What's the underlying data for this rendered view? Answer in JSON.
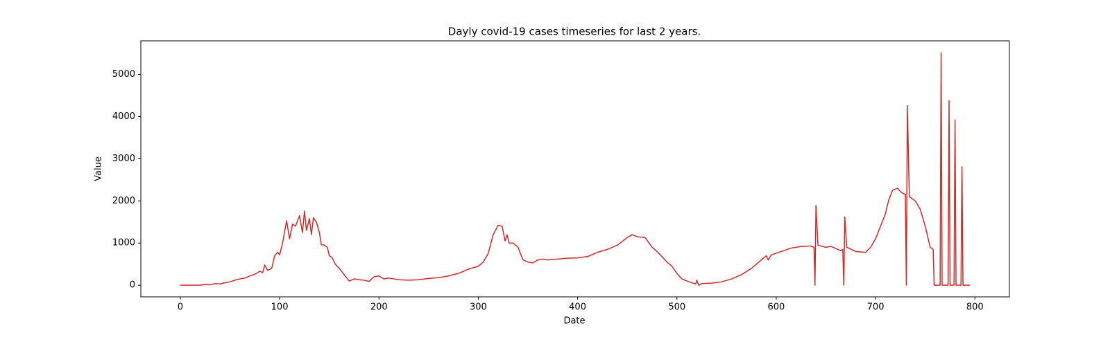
{
  "chart_data": {
    "type": "line",
    "title": "Dayly covid-19 cases timeseries for last 2 years.",
    "x_label": "Date",
    "y_label": "Value",
    "xlim": [
      -39.75,
      834.75
    ],
    "ylim": [
      -276,
      5796
    ],
    "xticks": [
      0,
      100,
      200,
      300,
      400,
      500,
      600,
      700,
      800
    ],
    "yticks": [
      0,
      1000,
      2000,
      3000,
      4000,
      5000
    ],
    "x": [
      0,
      20,
      25,
      30,
      35,
      40,
      45,
      50,
      55,
      60,
      65,
      70,
      75,
      80,
      83,
      85,
      88,
      92,
      95,
      98,
      100,
      103,
      107,
      110,
      113,
      116,
      120,
      123,
      125,
      127,
      130,
      132,
      134,
      137,
      140,
      142,
      145,
      148,
      150,
      153,
      156,
      160,
      165,
      170,
      175,
      180,
      185,
      190,
      195,
      200,
      205,
      210,
      220,
      230,
      240,
      250,
      260,
      270,
      280,
      290,
      300,
      305,
      310,
      315,
      320,
      324,
      327,
      329,
      331,
      335,
      340,
      345,
      350,
      355,
      360,
      365,
      370,
      380,
      390,
      400,
      410,
      420,
      430,
      440,
      450,
      455,
      460,
      468,
      475,
      480,
      490,
      495,
      500,
      505,
      510,
      515,
      519,
      520,
      522,
      525,
      535,
      545,
      555,
      565,
      575,
      585,
      590,
      592,
      595,
      605,
      615,
      625,
      635,
      638,
      639,
      640,
      642,
      650,
      655,
      665,
      667,
      668,
      669,
      671,
      680,
      690,
      695,
      700,
      705,
      710,
      713,
      717,
      722,
      726,
      730,
      731,
      732,
      734,
      740,
      745,
      750,
      755,
      758,
      759,
      765,
      766,
      767,
      773,
      774,
      775,
      779,
      780,
      781,
      786,
      787,
      788,
      795
    ],
    "series": [
      {
        "name": "Value",
        "color": "#d62728",
        "values": [
          0,
          0,
          20,
          10,
          40,
          30,
          60,
          80,
          120,
          150,
          170,
          220,
          260,
          330,
          300,
          480,
          350,
          400,
          700,
          780,
          720,
          1000,
          1530,
          1100,
          1450,
          1400,
          1650,
          1250,
          1760,
          1300,
          1580,
          1200,
          1600,
          1500,
          1250,
          960,
          950,
          900,
          700,
          650,
          500,
          400,
          250,
          100,
          150,
          130,
          120,
          90,
          200,
          220,
          150,
          170,
          130,
          120,
          130,
          160,
          180,
          220,
          280,
          380,
          450,
          550,
          750,
          1200,
          1420,
          1400,
          1050,
          1200,
          1000,
          1000,
          900,
          600,
          550,
          530,
          600,
          620,
          600,
          620,
          640,
          650,
          680,
          780,
          850,
          950,
          1130,
          1200,
          1150,
          1130,
          900,
          800,
          550,
          450,
          280,
          150,
          100,
          60,
          30,
          120,
          0,
          40,
          50,
          80,
          150,
          250,
          400,
          600,
          700,
          600,
          720,
          800,
          880,
          920,
          930,
          900,
          0,
          1890,
          950,
          900,
          920,
          820,
          850,
          0,
          1620,
          900,
          800,
          780,
          900,
          1100,
          1400,
          1700,
          2000,
          2250,
          2300,
          2200,
          2150,
          0,
          4260,
          2100,
          2000,
          1800,
          1400,
          900,
          850,
          0,
          0,
          5520,
          0,
          0,
          4380,
          0,
          0,
          3920,
          0,
          0,
          2810,
          0,
          0
        ]
      }
    ]
  }
}
